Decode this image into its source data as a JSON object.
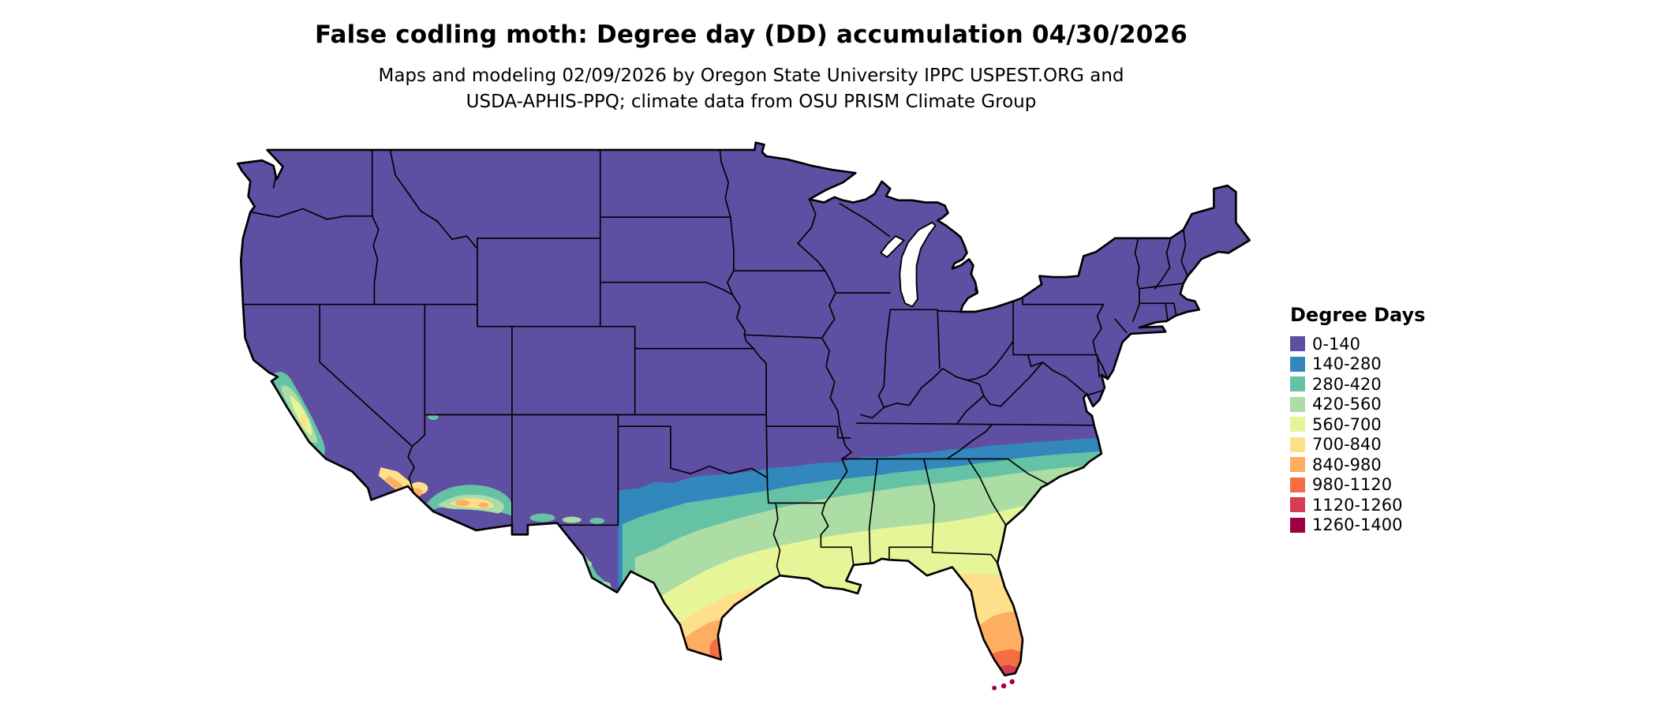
{
  "header": {
    "title": "False codling moth: Degree day (DD) accumulation 04/30/2026",
    "subtitle_line1": "Maps and modeling 02/09/2026 by Oregon State University IPPC USPEST.ORG and",
    "subtitle_line2": "USDA-APHIS-PPQ; climate data from OSU PRISM Climate Group"
  },
  "legend": {
    "title": "Degree Days",
    "bins": [
      {
        "label": "0-140",
        "color": "#5e4fa2"
      },
      {
        "label": "140-280",
        "color": "#3288bd"
      },
      {
        "label": "280-420",
        "color": "#66c2a5"
      },
      {
        "label": "420-560",
        "color": "#abdda4"
      },
      {
        "label": "560-700",
        "color": "#e6f598"
      },
      {
        "label": "700-840",
        "color": "#fee08b"
      },
      {
        "label": "840-980",
        "color": "#fdae61"
      },
      {
        "label": "980-1120",
        "color": "#f46d43"
      },
      {
        "label": "1120-1260",
        "color": "#d53e4f"
      },
      {
        "label": "1260-1400",
        "color": "#9e0142"
      }
    ]
  },
  "map": {
    "description": "Contiguous United States choropleth of false codling moth degree-day accumulation; cool purple in the north grading to warm reds in south Texas and south Florida",
    "border_color": "#000000",
    "background_color": "#ffffff"
  }
}
